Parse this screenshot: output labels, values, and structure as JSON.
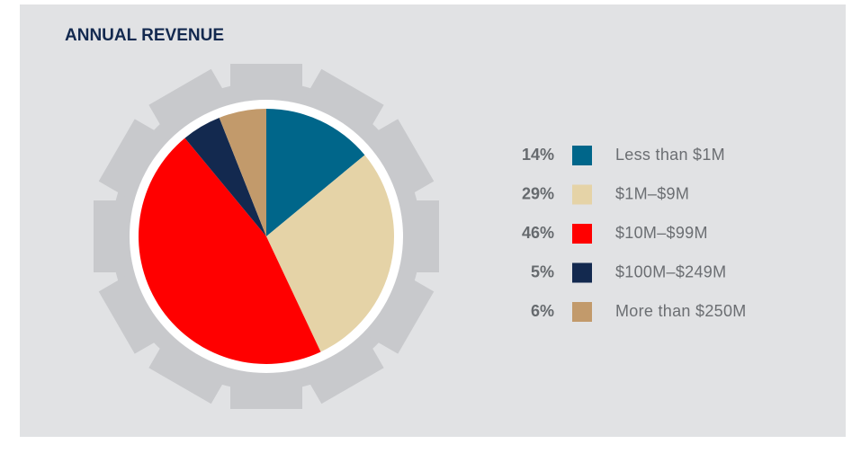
{
  "chart_data": {
    "type": "pie",
    "title": "ANNUAL REVENUE",
    "categories": [
      "Less than $1M",
      "$1M–$9M",
      "$10M–$99M",
      "$100M–$249M",
      "More than $250M"
    ],
    "values": [
      14,
      29,
      46,
      5,
      6
    ],
    "value_labels": [
      "14%",
      "29%",
      "46%",
      "5%",
      "6%"
    ],
    "colors": [
      "#00668a",
      "#e5d3a7",
      "#ff0000",
      "#13294f",
      "#c29a6b"
    ],
    "legend": "right"
  }
}
